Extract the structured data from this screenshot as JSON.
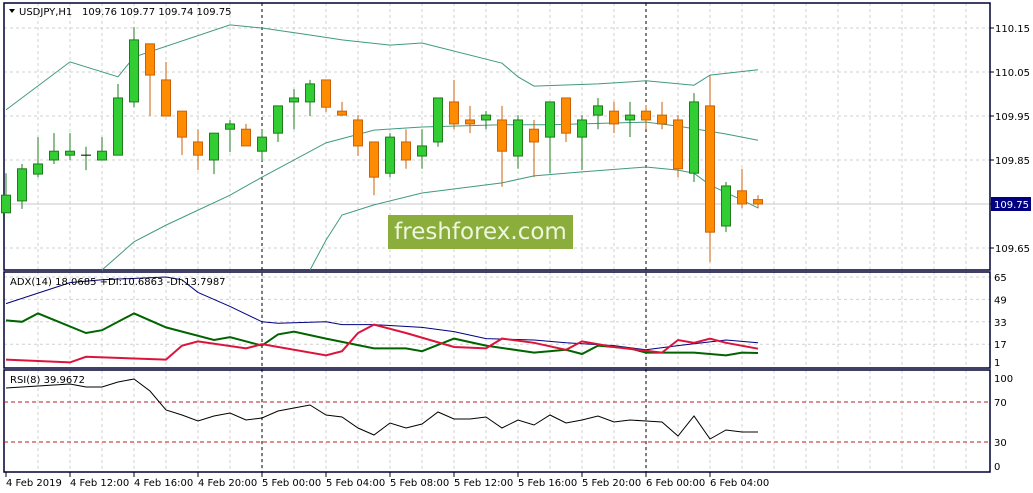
{
  "header": {
    "symbol": "USDJPY,H1",
    "ohlc": "109.76 109.77 109.74 109.75",
    "menu_icon": "triangle-down-icon"
  },
  "watermark": "freshforex.com",
  "colors": {
    "bull": "#32cd32",
    "bull_border": "#1e7b1e",
    "bear": "#ff8c00",
    "bear_border": "#c8620a",
    "bands": "#3f9a80",
    "adx": "#000080",
    "plus_di": "#006400",
    "minus_di": "#dc143c",
    "rsi": "#000000",
    "levels": "#b22222",
    "price_tag": "#000080"
  },
  "chart_data": [
    {
      "type": "candlestick",
      "title": "USDJPY,H1 109.76 109.77 109.74 109.75",
      "price_label": "109.75",
      "yticks": [
        "110.15",
        "110.05",
        "109.95",
        "109.85",
        "109.75",
        "109.65"
      ],
      "ylim": [
        109.595,
        110.205
      ],
      "candles": [
        [
          109.73,
          109.82,
          109.73,
          109.77
        ],
        [
          109.757,
          109.841,
          109.739,
          109.83
        ],
        [
          109.818,
          109.902,
          109.811,
          109.841
        ],
        [
          109.85,
          109.911,
          109.841,
          109.87
        ],
        [
          109.861,
          109.911,
          109.85,
          109.87
        ],
        [
          109.861,
          109.88,
          109.827,
          109.861
        ],
        [
          109.85,
          109.902,
          109.85,
          109.87
        ],
        [
          109.861,
          110.023,
          109.861,
          109.991
        ],
        [
          109.982,
          110.152,
          109.97,
          110.123
        ],
        [
          110.114,
          110.114,
          109.95,
          110.043
        ],
        [
          110.032,
          110.073,
          109.95,
          109.95
        ],
        [
          109.961,
          109.961,
          109.861,
          109.902
        ],
        [
          109.891,
          109.92,
          109.827,
          109.861
        ],
        [
          109.85,
          109.911,
          109.818,
          109.911
        ],
        [
          109.92,
          109.941,
          109.868,
          109.932
        ],
        [
          109.92,
          109.932,
          109.882,
          109.882
        ],
        [
          109.87,
          109.92,
          109.848,
          109.902
        ],
        [
          109.911,
          109.973,
          109.891,
          109.973
        ],
        [
          109.982,
          110.011,
          109.92,
          109.991
        ],
        [
          109.982,
          110.032,
          109.95,
          110.023
        ],
        [
          110.032,
          110.032,
          109.959,
          109.97
        ],
        [
          109.961,
          109.982,
          109.952,
          109.952
        ],
        [
          109.941,
          109.952,
          109.859,
          109.882
        ],
        [
          109.891,
          109.891,
          109.77,
          109.811
        ],
        [
          109.82,
          109.911,
          109.811,
          109.902
        ],
        [
          109.891,
          109.92,
          109.83,
          109.85
        ],
        [
          109.859,
          109.92,
          109.83,
          109.882
        ],
        [
          109.891,
          109.991,
          109.88,
          109.991
        ],
        [
          109.982,
          110.032,
          109.92,
          109.932
        ],
        [
          109.941,
          109.973,
          109.911,
          109.932
        ],
        [
          109.941,
          109.961,
          109.92,
          109.952
        ],
        [
          109.941,
          109.973,
          109.789,
          109.87
        ],
        [
          109.859,
          109.952,
          109.83,
          109.941
        ],
        [
          109.92,
          109.941,
          109.811,
          109.891
        ],
        [
          109.902,
          109.982,
          109.82,
          109.982
        ],
        [
          109.991,
          109.991,
          109.891,
          109.911
        ],
        [
          109.902,
          109.952,
          109.827,
          109.941
        ],
        [
          109.952,
          109.991,
          109.92,
          109.973
        ],
        [
          109.961,
          109.982,
          109.911,
          109.932
        ],
        [
          109.941,
          109.982,
          109.902,
          109.952
        ],
        [
          109.961,
          109.975,
          109.92,
          109.941
        ],
        [
          109.952,
          109.982,
          109.92,
          109.932
        ],
        [
          109.941,
          109.952,
          109.811,
          109.83
        ],
        [
          109.82,
          110.002,
          109.8,
          109.982
        ],
        [
          109.973,
          110.043,
          109.618,
          109.686
        ],
        [
          109.7,
          109.8,
          109.686,
          109.791
        ],
        [
          109.78,
          109.83,
          109.741,
          109.75
        ],
        [
          109.76,
          109.77,
          109.74,
          109.75
        ]
      ],
      "bollinger": {
        "upper": [
          [
            0,
            109.964
          ],
          [
            4,
            110.073
          ],
          [
            7,
            110.039
          ],
          [
            8,
            110.084
          ],
          [
            14,
            110.157
          ],
          [
            16,
            110.15
          ],
          [
            19,
            110.134
          ],
          [
            21,
            110.123
          ],
          [
            24,
            110.111
          ],
          [
            26,
            110.116
          ],
          [
            31,
            110.07
          ],
          [
            32,
            110.039
          ],
          [
            33,
            110.018
          ],
          [
            37,
            110.023
          ],
          [
            40,
            110.03
          ],
          [
            43,
            110.02
          ],
          [
            44,
            110.043
          ],
          [
            47,
            110.055
          ]
        ],
        "middle": [
          [
            6,
            109.6
          ],
          [
            8,
            109.664
          ],
          [
            10,
            109.702
          ],
          [
            14,
            109.77
          ],
          [
            16,
            109.811
          ],
          [
            20,
            109.889
          ],
          [
            23,
            109.918
          ],
          [
            26,
            109.925
          ],
          [
            31,
            109.93
          ],
          [
            34,
            109.93
          ],
          [
            40,
            109.936
          ],
          [
            42,
            109.927
          ],
          [
            45,
            109.909
          ],
          [
            47,
            109.895
          ]
        ],
        "lower": [
          [
            19,
            109.6
          ],
          [
            20,
            109.668
          ],
          [
            21,
            109.725
          ],
          [
            23,
            109.748
          ],
          [
            26,
            109.775
          ],
          [
            31,
            109.798
          ],
          [
            33,
            109.814
          ],
          [
            36,
            109.823
          ],
          [
            40,
            109.834
          ],
          [
            42,
            109.827
          ],
          [
            43,
            109.82
          ],
          [
            44,
            109.793
          ],
          [
            46,
            109.759
          ],
          [
            47,
            109.741
          ]
        ]
      }
    },
    {
      "type": "line",
      "title": "ADX(14) 18.0685 +DI:10.6863 -DI:13.7987",
      "yticks": [
        "65",
        "49",
        "33",
        "17",
        "1"
      ],
      "ylim": [
        1,
        71
      ],
      "series": [
        {
          "key": "adx",
          "points": [
            [
              0,
              46
            ],
            [
              4,
              61
            ],
            [
              6,
              63
            ],
            [
              10,
              65
            ],
            [
              11,
              63
            ],
            [
              12,
              54
            ],
            [
              13,
              49
            ],
            [
              14,
              44
            ],
            [
              16,
              33
            ],
            [
              17,
              32
            ],
            [
              20,
              33
            ],
            [
              21,
              31
            ],
            [
              23,
              31
            ],
            [
              26,
              29
            ],
            [
              28,
              26
            ],
            [
              30,
              21
            ],
            [
              33,
              20
            ],
            [
              35,
              18
            ],
            [
              38,
              16
            ],
            [
              40,
              13
            ],
            [
              42,
              16
            ],
            [
              45,
              20
            ],
            [
              47,
              18.07
            ]
          ]
        },
        {
          "key": "plus_di",
          "points": [
            [
              0,
              34
            ],
            [
              1,
              33
            ],
            [
              2,
              39
            ],
            [
              5,
              25
            ],
            [
              6,
              27
            ],
            [
              8,
              39
            ],
            [
              10,
              29
            ],
            [
              13,
              20
            ],
            [
              14,
              22
            ],
            [
              16,
              16
            ],
            [
              17,
              24
            ],
            [
              18,
              26
            ],
            [
              20,
              21
            ],
            [
              23,
              14
            ],
            [
              25,
              14
            ],
            [
              26,
              12
            ],
            [
              28,
              21
            ],
            [
              30,
              16
            ],
            [
              33,
              11
            ],
            [
              35,
              13
            ],
            [
              36,
              10
            ],
            [
              37,
              16
            ],
            [
              39,
              14
            ],
            [
              40,
              11
            ],
            [
              41,
              11
            ],
            [
              43,
              11
            ],
            [
              45,
              9
            ],
            [
              46,
              11
            ],
            [
              47,
              10.69
            ]
          ]
        },
        {
          "key": "minus_di",
          "points": [
            [
              0,
              6
            ],
            [
              4,
              4
            ],
            [
              5,
              8
            ],
            [
              10,
              6
            ],
            [
              11,
              16
            ],
            [
              12,
              19
            ],
            [
              15,
              14
            ],
            [
              16,
              17
            ],
            [
              20,
              9
            ],
            [
              21,
              12
            ],
            [
              22,
              25
            ],
            [
              23,
              31
            ],
            [
              24,
              28
            ],
            [
              25,
              25
            ],
            [
              28,
              15
            ],
            [
              30,
              14
            ],
            [
              31,
              21
            ],
            [
              33,
              18
            ],
            [
              35,
              13
            ],
            [
              36,
              19
            ],
            [
              38,
              15
            ],
            [
              41,
              11
            ],
            [
              42,
              20
            ],
            [
              43,
              18
            ],
            [
              44,
              21
            ],
            [
              45,
              18
            ],
            [
              47,
              13.79
            ]
          ]
        }
      ]
    },
    {
      "type": "line",
      "title": "RSI(8) 39.9672",
      "yticks": [
        "100",
        "70",
        "30",
        "0"
      ],
      "ylim": [
        0,
        100
      ],
      "levels": [
        70,
        30
      ],
      "values": [
        84,
        85,
        86,
        87,
        88,
        85,
        85,
        90,
        93,
        81,
        62,
        57,
        51,
        56,
        59,
        52,
        54,
        61,
        64,
        67,
        57,
        55,
        44,
        37,
        49,
        44,
        48,
        60,
        53,
        53,
        55,
        44,
        52,
        47,
        57,
        49,
        52,
        56,
        50,
        52,
        51,
        50,
        36,
        56,
        33,
        42,
        40,
        39.97
      ]
    }
  ],
  "time_axis": [
    {
      "index": 0,
      "label": "4 Feb 2019"
    },
    {
      "index": 4,
      "label": "4 Feb 12:00"
    },
    {
      "index": 8,
      "label": "4 Feb 16:00"
    },
    {
      "index": 12,
      "label": "4 Feb 20:00"
    },
    {
      "index": 16,
      "label": "5 Feb 00:00"
    },
    {
      "index": 20,
      "label": "5 Feb 04:00"
    },
    {
      "index": 24,
      "label": "5 Feb 08:00"
    },
    {
      "index": 28,
      "label": "5 Feb 12:00"
    },
    {
      "index": 32,
      "label": "5 Feb 16:00"
    },
    {
      "index": 36,
      "label": "5 Feb 20:00"
    },
    {
      "index": 40,
      "label": "6 Feb 00:00"
    },
    {
      "index": 44,
      "label": "6 Feb 04:00"
    }
  ],
  "day_separators": [
    16,
    40
  ]
}
